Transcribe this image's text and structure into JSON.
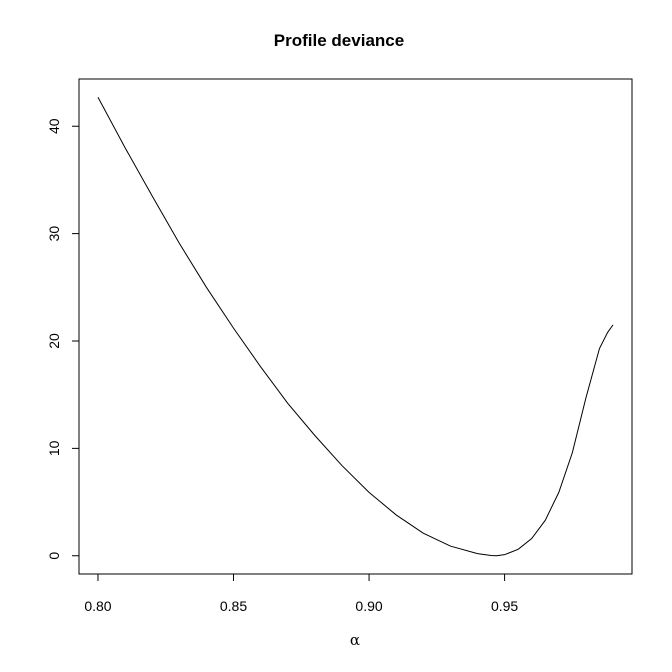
{
  "chart_data": {
    "type": "line",
    "title": "Profile deviance",
    "xlabel": "α",
    "ylabel": "",
    "xlim": [
      0.793,
      0.997
    ],
    "ylim": [
      -1.7,
      44.4
    ],
    "x_ticks": [
      0.8,
      0.85,
      0.9,
      0.95
    ],
    "x_tick_labels": [
      "0.80",
      "0.85",
      "0.90",
      "0.95"
    ],
    "y_ticks": [
      0,
      10,
      20,
      30,
      40
    ],
    "y_tick_labels": [
      "0",
      "10",
      "20",
      "30",
      "40"
    ],
    "grid": false,
    "series": [
      {
        "name": "deviance",
        "color": "#000000",
        "x": [
          0.8,
          0.81,
          0.82,
          0.83,
          0.84,
          0.85,
          0.86,
          0.87,
          0.88,
          0.89,
          0.9,
          0.91,
          0.92,
          0.93,
          0.94,
          0.945,
          0.947,
          0.95,
          0.955,
          0.96,
          0.965,
          0.97,
          0.975,
          0.98,
          0.985,
          0.988,
          0.99
        ],
        "y": [
          42.7,
          38.0,
          33.5,
          29.1,
          25.0,
          21.2,
          17.6,
          14.2,
          11.2,
          8.4,
          5.9,
          3.8,
          2.1,
          0.9,
          0.2,
          0.02,
          0.0,
          0.1,
          0.6,
          1.6,
          3.3,
          5.9,
          9.6,
          14.7,
          19.3,
          20.8,
          21.5
        ]
      }
    ]
  }
}
